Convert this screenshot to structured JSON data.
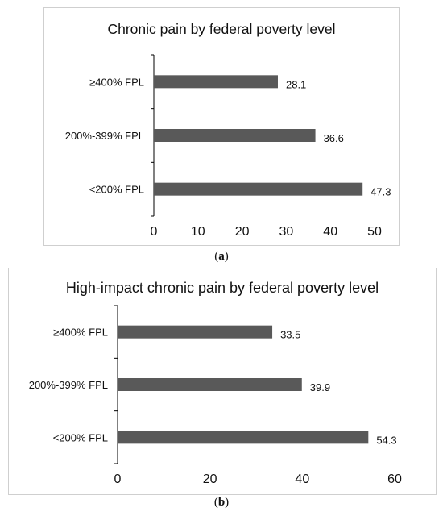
{
  "chart_data": [
    {
      "type": "bar",
      "orientation": "horizontal",
      "title": "Chronic pain by federal poverty level",
      "categories": [
        "≥400% FPL",
        "200%-399% FPL",
        "<200% FPL"
      ],
      "values": [
        28.1,
        36.6,
        47.3
      ],
      "value_labels": [
        "28.1",
        "36.6",
        "47.3"
      ],
      "xlim": [
        0,
        50
      ],
      "xticks": [
        0,
        10,
        20,
        30,
        40,
        50
      ],
      "xtick_labels": [
        "0",
        "10",
        "20",
        "30",
        "40",
        "50"
      ],
      "grid": false,
      "bar_color": "#595959",
      "caption_letter": "a"
    },
    {
      "type": "bar",
      "orientation": "horizontal",
      "title": "High-impact chronic pain by federal poverty level",
      "categories": [
        "≥400% FPL",
        "200%-399% FPL",
        "<200% FPL"
      ],
      "values": [
        33.5,
        39.9,
        54.3
      ],
      "value_labels": [
        "33.5",
        "39.9",
        "54.3"
      ],
      "xlim": [
        0,
        60
      ],
      "xticks": [
        0,
        20,
        40,
        60
      ],
      "xtick_labels": [
        "0",
        "20",
        "40",
        "60"
      ],
      "grid": false,
      "bar_color": "#595959",
      "caption_letter": "b"
    }
  ]
}
